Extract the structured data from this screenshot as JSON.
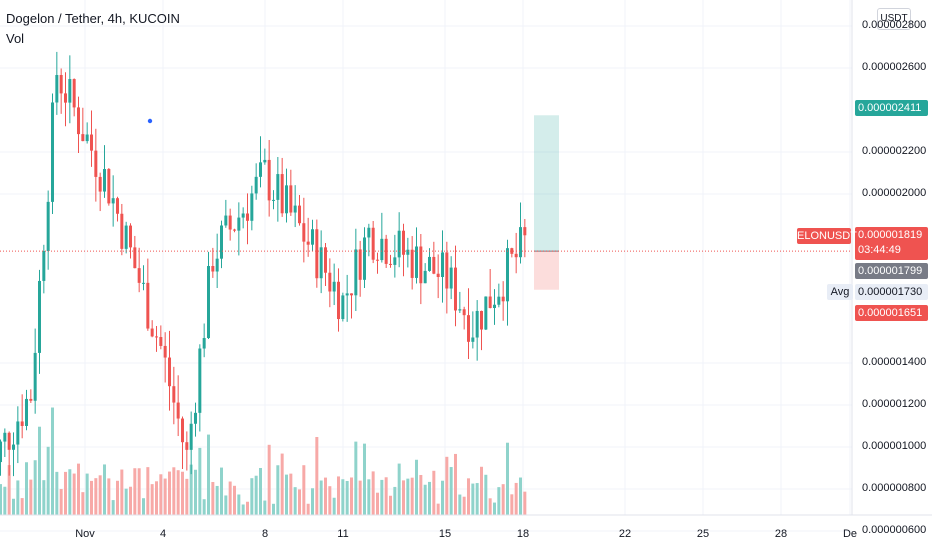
{
  "header": {
    "title": "Dogelon / Tether, 4h, KUCOIN",
    "indicator": "Vol"
  },
  "currency_button": "USDT",
  "colors": {
    "up": "#26a69a",
    "down": "#ef5350",
    "up_volume": "#8fd3cb",
    "down_volume": "#f7a9a7",
    "target": "#26a69a",
    "stop": "#ef5350",
    "current": "#787b86",
    "avg_bg": "#e8edf6"
  },
  "price_axis": {
    "ticks": [
      "0.000002800",
      "0.000002600",
      "0.000002200",
      "0.000002000",
      "0.000001400",
      "0.000001200",
      "0.000001000",
      "0.000000800",
      "0.000000600"
    ]
  },
  "time_axis": {
    "ticks": [
      "Nov",
      "4",
      "8",
      "11",
      "15",
      "18",
      "22",
      "25",
      "28",
      "De"
    ]
  },
  "labels": {
    "target_price": "0.000002411",
    "last_price": "0.000001819",
    "countdown": "03:44:49",
    "current_price": "0.000001799",
    "avg_price": "0.000001730",
    "stop_price": "0.000001651",
    "symbol": "ELONUSDT",
    "avg": "Avg"
  },
  "chart_data": {
    "type": "candlestick",
    "title": "Dogelon / Tether, 4h, KUCOIN",
    "interval": "4h",
    "x_range": [
      "Oct 28",
      "Dec 1"
    ],
    "y_range": [
      5.5e-07,
      2.9e-06
    ],
    "grid": true,
    "series": [
      {
        "name": "ELONUSDT",
        "kind": "candles",
        "last": 1.819e-06
      },
      {
        "name": "Vol",
        "kind": "volume"
      }
    ],
    "segments": [
      {
        "from": "Oct 28",
        "to": "Oct 30",
        "start": 7.8e-07,
        "end": 1.2e-06
      },
      {
        "from": "Oct 30",
        "to": "Oct 31",
        "start": 1.2e-06,
        "end": 2.6e-06
      },
      {
        "from": "Oct 31",
        "to": "Nov 2",
        "start": 2.6e-06,
        "end": 2.1e-06
      },
      {
        "from": "Nov 2",
        "to": "Nov 4",
        "start": 2.1e-06,
        "end": 1.4e-06
      },
      {
        "from": "Nov 4",
        "to": "Nov 5",
        "start": 1.4e-06,
        "end": 9.2e-07
      },
      {
        "from": "Nov 5",
        "to": "Nov 6",
        "start": 9.2e-07,
        "end": 1.8e-06
      },
      {
        "from": "Nov 6",
        "to": "Nov 8",
        "start": 1.8e-06,
        "end": 2.15e-06
      },
      {
        "from": "Nov 8",
        "to": "Nov 10",
        "start": 2.15e-06,
        "end": 1.8e-06
      },
      {
        "from": "Nov 10",
        "to": "Nov 11",
        "start": 1.8e-06,
        "end": 1.6e-06
      },
      {
        "from": "Nov 11",
        "to": "Nov 12",
        "start": 1.6e-06,
        "end": 1.9e-06
      },
      {
        "from": "Nov 12",
        "to": "Nov 15",
        "start": 1.9e-06,
        "end": 1.7e-06
      },
      {
        "from": "Nov 15",
        "to": "Nov 16",
        "start": 1.7e-06,
        "end": 1.5e-06
      },
      {
        "from": "Nov 16",
        "to": "Nov 18",
        "start": 1.5e-06,
        "end": 1.85e-06
      }
    ],
    "position": {
      "entry": 1.819e-06,
      "target": 2.411e-06,
      "stop": 1.651e-06,
      "start": "Nov 18",
      "end": "Nov 19"
    }
  }
}
